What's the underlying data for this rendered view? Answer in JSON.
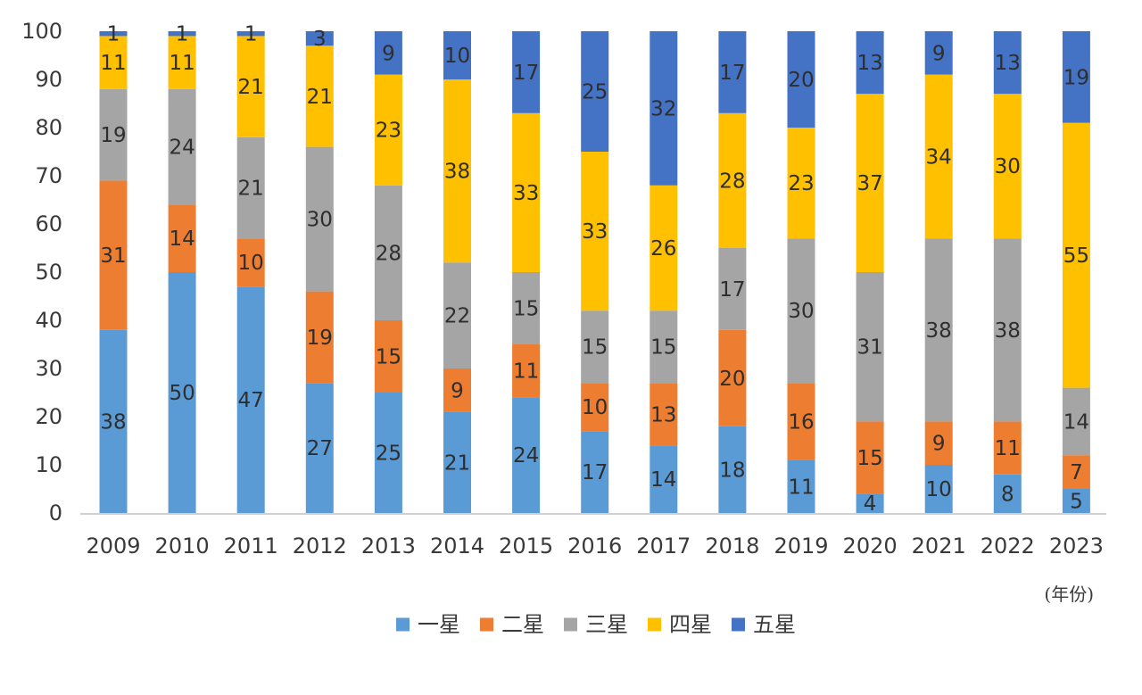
{
  "chart_data": {
    "type": "bar",
    "stacked": true,
    "title": "",
    "xlabel": "(年份)",
    "ylabel": "",
    "ylim": [
      0,
      100
    ],
    "y_ticks": [
      "0",
      "10",
      "20",
      "30",
      "40",
      "50",
      "60",
      "70",
      "80",
      "90",
      "100"
    ],
    "grid": false,
    "legend_position": "bottom",
    "categories": [
      "2009",
      "2010",
      "2011",
      "2012",
      "2013",
      "2014",
      "2015",
      "2016",
      "2017",
      "2018",
      "2019",
      "2020",
      "2021",
      "2022",
      "2023"
    ],
    "series": [
      {
        "name": "一星",
        "color": "#5b9bd5",
        "values": [
          38,
          50,
          47,
          27,
          25,
          21,
          24,
          17,
          14,
          18,
          11,
          4,
          10,
          8,
          5
        ]
      },
      {
        "name": "二星",
        "color": "#ed7d31",
        "values": [
          31,
          14,
          10,
          19,
          15,
          9,
          11,
          10,
          13,
          20,
          16,
          15,
          9,
          11,
          7
        ]
      },
      {
        "name": "三星",
        "color": "#a5a5a5",
        "values": [
          19,
          24,
          21,
          30,
          28,
          22,
          15,
          15,
          15,
          17,
          30,
          31,
          38,
          38,
          14
        ]
      },
      {
        "name": "四星",
        "color": "#ffc000",
        "values": [
          11,
          11,
          21,
          21,
          23,
          38,
          33,
          33,
          26,
          28,
          23,
          37,
          34,
          30,
          55
        ]
      },
      {
        "name": "五星",
        "color": "#4472c4",
        "values": [
          1,
          1,
          1,
          3,
          9,
          10,
          17,
          25,
          32,
          17,
          20,
          13,
          9,
          13,
          19
        ]
      }
    ]
  }
}
